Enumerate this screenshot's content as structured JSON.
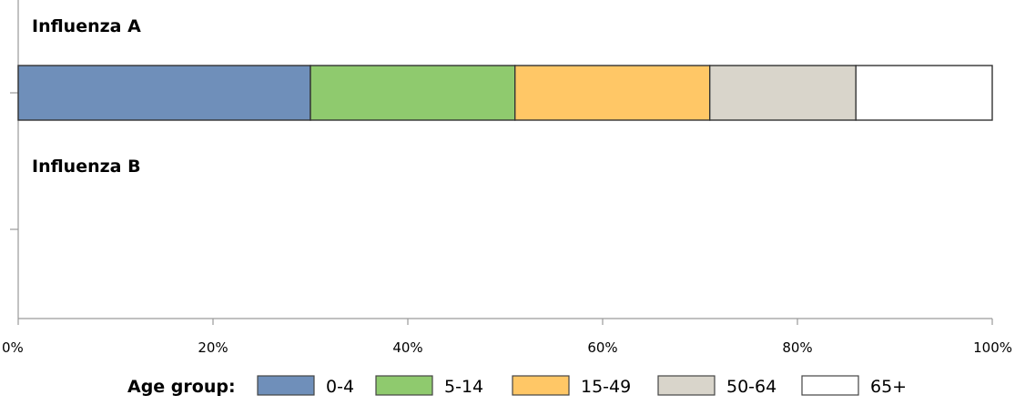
{
  "chart_data": {
    "type": "bar",
    "orientation": "horizontal",
    "stacked": true,
    "categories": [
      "Influenza A",
      "Influenza B"
    ],
    "series": [
      {
        "name": "0-4",
        "color": "#6f8fba",
        "values": [
          30,
          0
        ]
      },
      {
        "name": "5-14",
        "color": "#8fca6e",
        "values": [
          21,
          0
        ]
      },
      {
        "name": "15-49",
        "color": "#ffc766",
        "values": [
          20,
          0
        ]
      },
      {
        "name": "50-64",
        "color": "#d9d5cb",
        "values": [
          15,
          0
        ]
      },
      {
        "name": "65+",
        "color": "#ffffff",
        "values": [
          14,
          0
        ]
      }
    ],
    "xlim": [
      0,
      100
    ],
    "x_ticks": [
      0,
      20,
      40,
      60,
      80,
      100
    ],
    "x_tick_labels": [
      "0%",
      "20%",
      "40%",
      "60%",
      "80%",
      "100%"
    ],
    "grid": false,
    "legend": {
      "title": "Age group:",
      "position": "bottom"
    }
  }
}
